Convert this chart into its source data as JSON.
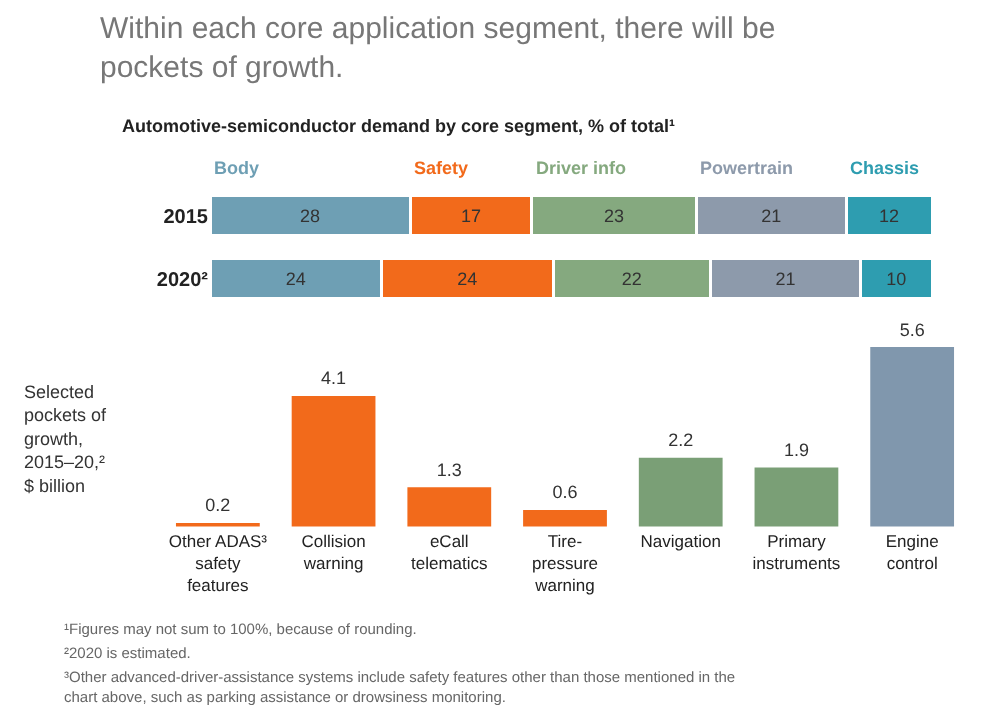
{
  "chart_data": [
    {
      "type": "bar",
      "title": "Within each core application segment, there will be pockets of growth.",
      "subtitle": "Automotive-semiconductor demand by core segment, % of total¹",
      "categories": [
        "2015",
        "2020²"
      ],
      "orientation": "horizontal",
      "stacked": true,
      "data_labels": true,
      "legend": "top",
      "series": [
        {
          "name": "Body",
          "color": "#6e9fb4",
          "values": [
            28,
            24
          ]
        },
        {
          "name": "Safety",
          "color": "#f26a1b",
          "values": [
            17,
            24
          ]
        },
        {
          "name": "Driver info",
          "color": "#85a97f",
          "values": [
            23,
            22
          ]
        },
        {
          "name": "Powertrain",
          "color": "#8d9aab",
          "values": [
            21,
            21
          ]
        },
        {
          "name": "Chassis",
          "color": "#2e9db0",
          "values": [
            12,
            10
          ]
        }
      ]
    },
    {
      "type": "bar",
      "ylabel": "Selected pockets of growth, 2015–20,² $ billion",
      "categories": [
        "Other ADAS³ safety features",
        "Collision warning",
        "eCall telematics",
        "Tire-pressure warning",
        "Navigation",
        "Primary instruments",
        "Engine control"
      ],
      "values": [
        0.2,
        4.1,
        1.3,
        0.6,
        2.2,
        1.9,
        5.6
      ],
      "colors": [
        "#f26a1b",
        "#f26a1b",
        "#f26a1b",
        "#f26a1b",
        "#7a9f76",
        "#7a9f76",
        "#8097ad"
      ],
      "data_labels": true,
      "annotations": [
        "¹Figures may not sum to 100%, because of rounding.",
        "²2020 is estimated.",
        "³Other advanced-driver-assistance systems include safety features other than those mentioned in the chart above, such as parking assistance or drowsiness monitoring."
      ]
    }
  ]
}
